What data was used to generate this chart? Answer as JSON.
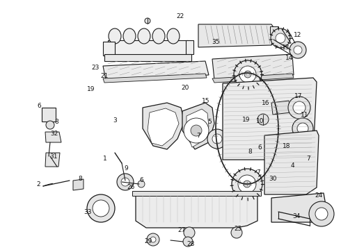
{
  "background_color": "#ffffff",
  "line_color": "#1a1a1a",
  "label_color": "#111111",
  "fig_width": 4.9,
  "fig_height": 3.6,
  "dpi": 100,
  "label_fontsize": 6.5,
  "label_fontsize_small": 5.5
}
